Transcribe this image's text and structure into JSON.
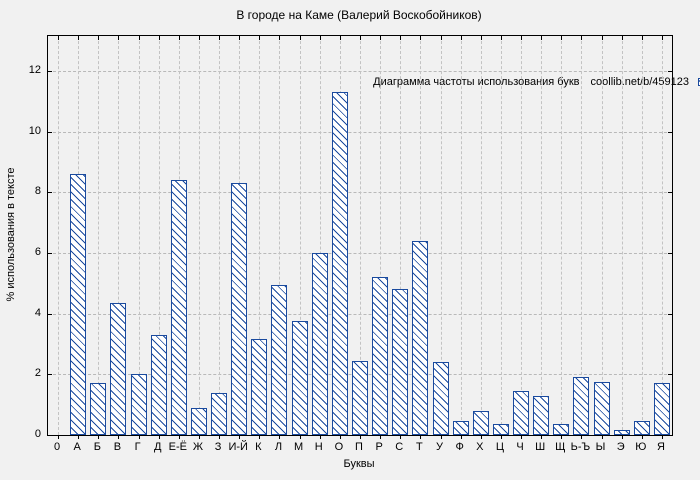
{
  "title": "В городе на Каме (Валерий Воскобойников)",
  "legend": {
    "label": "Диаграмма частоты использования букв",
    "source": "coollib.net/b/459123"
  },
  "axes": {
    "x_title": "Буквы",
    "y_title": "% использования в тексте",
    "x_origin_label": "0",
    "y_ticks": [
      0,
      2,
      4,
      6,
      8,
      10,
      12
    ]
  },
  "colors": {
    "bar_blue": "#1a4a9e",
    "background": "#f1f1f1",
    "grid": "#b9b9b9",
    "frame": "#000000"
  },
  "chart_data": {
    "type": "bar",
    "title": "В городе на Каме (Валерий Воскобойников)",
    "xlabel": "Буквы",
    "ylabel": "% использования в тексте",
    "ylim": [
      0,
      13.16
    ],
    "grid": true,
    "legend_position": "top-right-inside",
    "bar_style": "blue diagonal hatch on white",
    "categories": [
      "А",
      "Б",
      "В",
      "Г",
      "Д",
      "Е-Ё",
      "Ж",
      "З",
      "И-Й",
      "К",
      "Л",
      "М",
      "Н",
      "О",
      "П",
      "Р",
      "С",
      "Т",
      "У",
      "Ф",
      "Х",
      "Ц",
      "Ч",
      "Ш",
      "Щ",
      "Ь-Ъ",
      "Ы",
      "Э",
      "Ю",
      "Я"
    ],
    "values": [
      8.6,
      1.7,
      4.35,
      2.0,
      3.3,
      8.4,
      0.9,
      1.4,
      8.3,
      3.15,
      4.95,
      3.75,
      6.0,
      11.3,
      2.45,
      5.2,
      4.8,
      6.4,
      2.4,
      0.45,
      0.8,
      0.35,
      1.45,
      1.3,
      0.35,
      1.9,
      1.75,
      0.15,
      0.45,
      1.7
    ]
  }
}
